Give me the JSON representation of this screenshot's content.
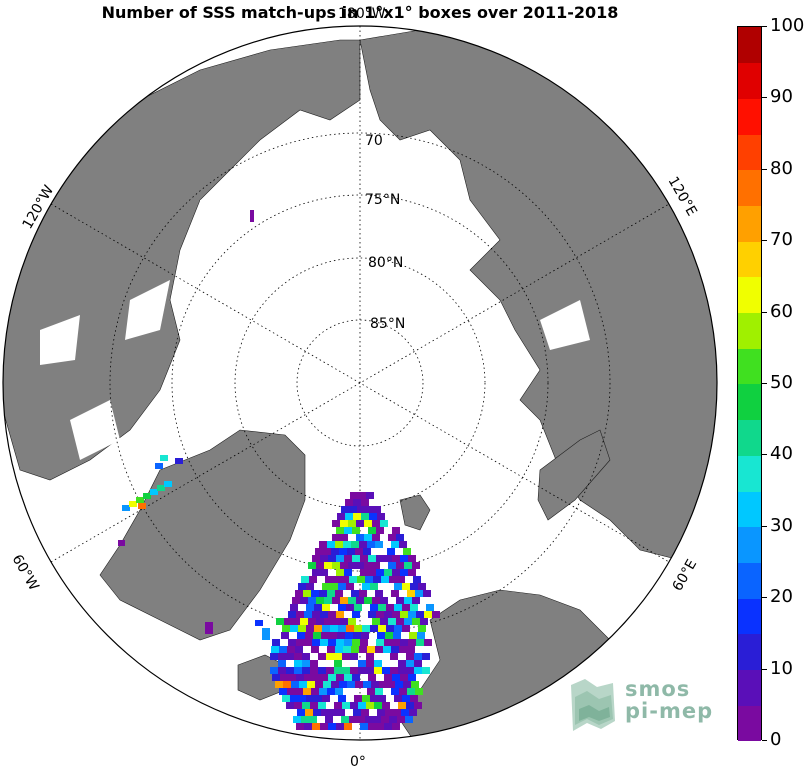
{
  "title": "Number of SSS match-ups in 1°x1° boxes over 2011-2018",
  "colorbar": {
    "ticks": [
      "0",
      "10",
      "20",
      "30",
      "40",
      "50",
      "60",
      "70",
      "80",
      "90",
      "100"
    ],
    "min": 0,
    "max": 100,
    "colors": [
      "#7a0aa0",
      "#5a0fb8",
      "#2a1ed6",
      "#0a32ff",
      "#0a64ff",
      "#0a96ff",
      "#00c8ff",
      "#18e6d2",
      "#10d88c",
      "#10d040",
      "#40e020",
      "#a0f000",
      "#f0ff00",
      "#ffd000",
      "#ffa000",
      "#ff7000",
      "#ff4000",
      "#ff1000",
      "#e00000",
      "#b00000"
    ]
  },
  "map": {
    "projection": "north polar stereographic",
    "land_color": "#808080",
    "ocean_color": "#ffffff",
    "lat_labels": [
      "70",
      "75°N",
      "80°N",
      "85°N"
    ],
    "lon_labels": {
      "top": "180°W",
      "left_upper": "120°W",
      "left_lower": "60°W",
      "bottom": "0°",
      "right_upper": "120°E",
      "right_lower": "60°E"
    }
  },
  "logo": {
    "line1": "smos",
    "line2": "pi-mep"
  }
}
